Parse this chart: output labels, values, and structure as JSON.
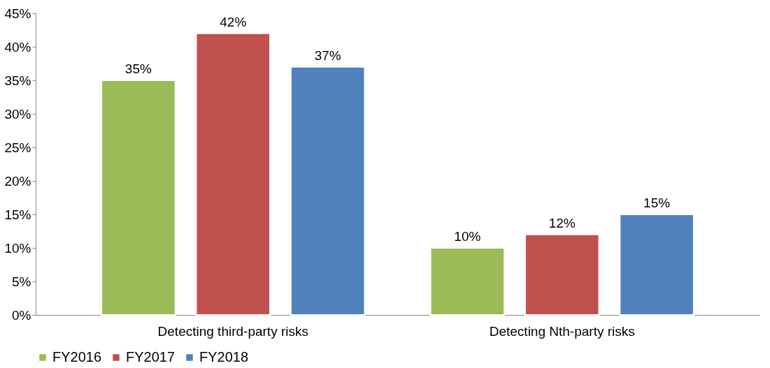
{
  "chart_data": {
    "type": "bar",
    "categories": [
      "Detecting third-party risks",
      "Detecting Nth-party risks"
    ],
    "series": [
      {
        "name": "FY2016",
        "color": "#9bbb59",
        "values": [
          35,
          10
        ],
        "value_labels": [
          "35%",
          "10%"
        ]
      },
      {
        "name": "FY2017",
        "color": "#c0504d",
        "values": [
          42,
          12
        ],
        "value_labels": [
          "42%",
          "12%"
        ]
      },
      {
        "name": "FY2018",
        "color": "#4f81bd",
        "values": [
          37,
          15
        ],
        "value_labels": [
          "37%",
          "15%"
        ]
      }
    ],
    "ylim": [
      0,
      45
    ],
    "yticks": [
      {
        "value": 0,
        "label": "0%"
      },
      {
        "value": 5,
        "label": "5%"
      },
      {
        "value": 10,
        "label": "10%"
      },
      {
        "value": 15,
        "label": "15%"
      },
      {
        "value": 20,
        "label": "20%"
      },
      {
        "value": 25,
        "label": "25%"
      },
      {
        "value": 30,
        "label": "30%"
      },
      {
        "value": 35,
        "label": "35%"
      },
      {
        "value": 40,
        "label": "40%"
      },
      {
        "value": 45,
        "label": "45%"
      }
    ],
    "grid": false,
    "legend": "bottom"
  }
}
